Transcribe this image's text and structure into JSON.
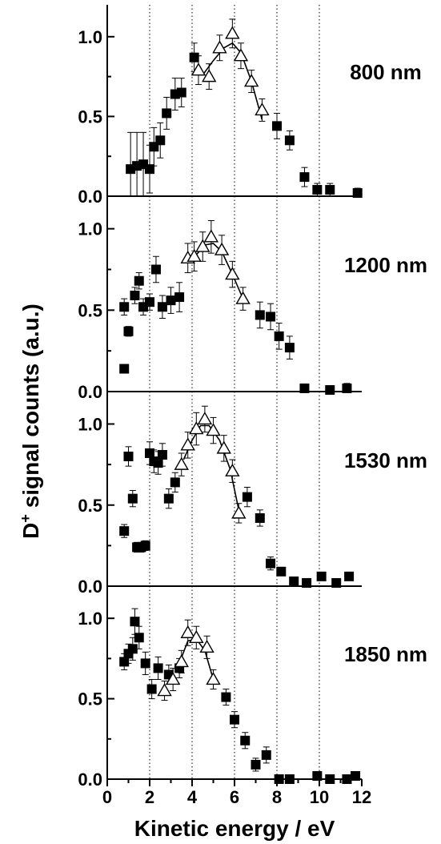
{
  "chart_data": {
    "type": "scatter",
    "xlabel": "Kinetic energy / eV",
    "ylabel_main": "D",
    "ylabel_sup": "+",
    "ylabel_rest": " signal counts (a.u.)",
    "xlim": [
      0,
      12
    ],
    "xticks": [
      "0",
      "2",
      "4",
      "6",
      "8",
      "10",
      "12"
    ],
    "ylim": [
      0,
      1.2
    ],
    "yticks": [
      "0.0",
      "0.5",
      "1.0"
    ],
    "vgrid": [
      2,
      4,
      6,
      8,
      10
    ],
    "panels": [
      {
        "label": "800 nm",
        "squares": [
          [
            1.1,
            0.17,
            0.23
          ],
          [
            1.4,
            0.19,
            0.21
          ],
          [
            1.7,
            0.2,
            0.2
          ],
          [
            2.0,
            0.17,
            0.15
          ],
          [
            2.2,
            0.31,
            0.12
          ],
          [
            2.5,
            0.35,
            0.11
          ],
          [
            2.8,
            0.52,
            0.1
          ],
          [
            3.2,
            0.64,
            0.1
          ],
          [
            3.5,
            0.65,
            0.09
          ],
          [
            4.1,
            0.87,
            0.09
          ],
          [
            8.0,
            0.44,
            0.08
          ],
          [
            8.6,
            0.35,
            0.06
          ],
          [
            9.3,
            0.12,
            0.06
          ],
          [
            9.9,
            0.04,
            0.04
          ],
          [
            10.5,
            0.04,
            0.04
          ],
          [
            11.8,
            0.02,
            0.03
          ]
        ],
        "triangles": [
          [
            4.3,
            0.79,
            0.09
          ],
          [
            4.8,
            0.75,
            0.08
          ],
          [
            5.3,
            0.93,
            0.08
          ],
          [
            5.9,
            1.02,
            0.09
          ],
          [
            6.3,
            0.88,
            0.08
          ],
          [
            6.8,
            0.72,
            0.07
          ],
          [
            7.3,
            0.54,
            0.07
          ]
        ],
        "fit": [
          [
            4.5,
            0.76
          ],
          [
            5.0,
            0.85
          ],
          [
            5.5,
            0.93
          ],
          [
            5.9,
            0.96
          ],
          [
            6.3,
            0.9
          ],
          [
            6.8,
            0.72
          ],
          [
            7.3,
            0.48
          ]
        ]
      },
      {
        "label": "1200 nm",
        "squares": [
          [
            0.8,
            0.14,
            0.0
          ],
          [
            0.8,
            0.52,
            0.05
          ],
          [
            1.0,
            0.37,
            0.03
          ],
          [
            1.3,
            0.59,
            0.05
          ],
          [
            1.5,
            0.68,
            0.05
          ],
          [
            1.7,
            0.52,
            0.05
          ],
          [
            2.0,
            0.55,
            0.05
          ],
          [
            2.3,
            0.75,
            0.08
          ],
          [
            2.6,
            0.52,
            0.07
          ],
          [
            3.0,
            0.56,
            0.08
          ],
          [
            3.4,
            0.58,
            0.09
          ],
          [
            7.2,
            0.47,
            0.08
          ],
          [
            7.7,
            0.46,
            0.08
          ],
          [
            8.1,
            0.34,
            0.08
          ],
          [
            8.6,
            0.27,
            0.07
          ],
          [
            9.3,
            0.02,
            0.02
          ],
          [
            10.5,
            0.01,
            0.01
          ],
          [
            11.3,
            0.02,
            0.03
          ]
        ],
        "triangles": [
          [
            3.8,
            0.82,
            0.09
          ],
          [
            4.1,
            0.83,
            0.09
          ],
          [
            4.5,
            0.89,
            0.09
          ],
          [
            4.9,
            0.95,
            0.1
          ],
          [
            5.4,
            0.87,
            0.09
          ],
          [
            5.9,
            0.72,
            0.08
          ],
          [
            6.4,
            0.57,
            0.07
          ]
        ],
        "fit": [
          [
            4.2,
            0.84
          ],
          [
            4.6,
            0.9
          ],
          [
            5.0,
            0.91
          ],
          [
            5.4,
            0.86
          ],
          [
            5.9,
            0.72
          ],
          [
            6.4,
            0.57
          ]
        ]
      },
      {
        "label": "1530 nm",
        "squares": [
          [
            0.8,
            0.34,
            0.04
          ],
          [
            1.0,
            0.8,
            0.06
          ],
          [
            1.2,
            0.54,
            0.05
          ],
          [
            1.4,
            0.24,
            0.03
          ],
          [
            1.6,
            0.24,
            0.03
          ],
          [
            1.8,
            0.25,
            0.03
          ],
          [
            2.0,
            0.82,
            0.07
          ],
          [
            2.2,
            0.77,
            0.07
          ],
          [
            2.4,
            0.76,
            0.07
          ],
          [
            2.6,
            0.81,
            0.07
          ],
          [
            2.9,
            0.54,
            0.06
          ],
          [
            3.2,
            0.64,
            0.06
          ],
          [
            6.6,
            0.55,
            0.06
          ],
          [
            7.2,
            0.42,
            0.05
          ],
          [
            7.7,
            0.14,
            0.04
          ],
          [
            8.2,
            0.09,
            0.02
          ],
          [
            8.8,
            0.03,
            0.02
          ],
          [
            9.4,
            0.02,
            0.02
          ],
          [
            10.1,
            0.06,
            0.02
          ],
          [
            10.8,
            0.02,
            0.02
          ],
          [
            11.4,
            0.06,
            0.02
          ]
        ],
        "triangles": [
          [
            3.5,
            0.75,
            0.07
          ],
          [
            3.8,
            0.87,
            0.08
          ],
          [
            4.2,
            0.97,
            0.1
          ],
          [
            4.6,
            1.03,
            0.08
          ],
          [
            5.0,
            0.96,
            0.08
          ],
          [
            5.5,
            0.85,
            0.08
          ],
          [
            5.9,
            0.71,
            0.07
          ],
          [
            6.2,
            0.45,
            0.06
          ]
        ],
        "fit": [
          [
            3.6,
            0.78
          ],
          [
            4.0,
            0.9
          ],
          [
            4.4,
            0.99
          ],
          [
            4.8,
            0.99
          ],
          [
            5.3,
            0.9
          ],
          [
            5.8,
            0.72
          ],
          [
            6.2,
            0.47
          ]
        ]
      },
      {
        "label": "1850 nm",
        "squares": [
          [
            0.8,
            0.73,
            0.05
          ],
          [
            1.0,
            0.78,
            0.06
          ],
          [
            1.2,
            0.81,
            0.07
          ],
          [
            1.3,
            0.98,
            0.08
          ],
          [
            1.5,
            0.88,
            0.07
          ],
          [
            1.8,
            0.72,
            0.07
          ],
          [
            2.1,
            0.56,
            0.06
          ],
          [
            2.4,
            0.69,
            0.07
          ],
          [
            2.9,
            0.65,
            0.06
          ],
          [
            3.4,
            0.69,
            0.06
          ],
          [
            5.6,
            0.51,
            0.05
          ],
          [
            6.0,
            0.37,
            0.05
          ],
          [
            6.5,
            0.24,
            0.05
          ],
          [
            7.0,
            0.09,
            0.04
          ],
          [
            7.5,
            0.15,
            0.05
          ],
          [
            8.1,
            0.0,
            0.01
          ],
          [
            8.6,
            0.0,
            0.01
          ],
          [
            9.9,
            0.02,
            0.02
          ],
          [
            10.5,
            0.0,
            0.01
          ],
          [
            11.3,
            0.0,
            0.01
          ],
          [
            11.7,
            0.02,
            0.02
          ]
        ],
        "triangles": [
          [
            2.7,
            0.55,
            0.06
          ],
          [
            3.1,
            0.62,
            0.07
          ],
          [
            3.5,
            0.73,
            0.07
          ],
          [
            3.8,
            0.91,
            0.08
          ],
          [
            4.2,
            0.88,
            0.07
          ],
          [
            4.7,
            0.82,
            0.07
          ],
          [
            5.0,
            0.62,
            0.06
          ]
        ],
        "fit": [
          [
            3.4,
            0.72
          ],
          [
            3.8,
            0.86
          ],
          [
            4.2,
            0.87
          ],
          [
            4.6,
            0.8
          ],
          [
            5.0,
            0.62
          ]
        ]
      }
    ]
  }
}
